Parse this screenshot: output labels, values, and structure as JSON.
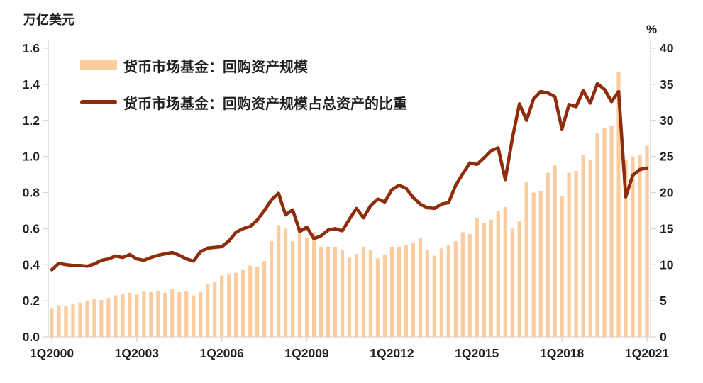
{
  "axes_titles": {
    "left": "万亿美元",
    "right": "%"
  },
  "legend": {
    "items": [
      {
        "label": "货币市场基金：回购资产规模",
        "marker": "bar"
      },
      {
        "label": "货币市场基金：回购资产规模占总资产的比重",
        "marker": "line"
      }
    ]
  },
  "colors": {
    "bar": "#FACC9E",
    "line": "#8E2C0B",
    "text": "#1F1F1F",
    "axis": "#D6D6D6",
    "background": "#FFFFFF"
  },
  "chart_data": {
    "type": "bar+line",
    "title": "",
    "left_axis": {
      "label": "万亿美元",
      "min": 0,
      "max": 1.6,
      "step": 0.2
    },
    "right_axis": {
      "label": "%",
      "min": 0,
      "max": 40,
      "step": 5
    },
    "x_tick_labels": [
      "1Q2000",
      "1Q2003",
      "1Q2006",
      "1Q2009",
      "1Q2012",
      "1Q2015",
      "1Q2018",
      "1Q2021"
    ],
    "x_tick_indices": [
      0,
      12,
      24,
      36,
      48,
      60,
      72,
      84
    ],
    "grid": false,
    "legend_position": "top-left",
    "categories": [
      "1Q2000",
      "2Q2000",
      "3Q2000",
      "4Q2000",
      "1Q2001",
      "2Q2001",
      "3Q2001",
      "4Q2001",
      "1Q2002",
      "2Q2002",
      "3Q2002",
      "4Q2002",
      "1Q2003",
      "2Q2003",
      "3Q2003",
      "4Q2003",
      "1Q2004",
      "2Q2004",
      "3Q2004",
      "4Q2004",
      "1Q2005",
      "2Q2005",
      "3Q2005",
      "4Q2005",
      "1Q2006",
      "2Q2006",
      "3Q2006",
      "4Q2006",
      "1Q2007",
      "2Q2007",
      "3Q2007",
      "4Q2007",
      "1Q2008",
      "2Q2008",
      "3Q2008",
      "4Q2008",
      "1Q2009",
      "2Q2009",
      "3Q2009",
      "4Q2009",
      "1Q2010",
      "2Q2010",
      "3Q2010",
      "4Q2010",
      "1Q2011",
      "2Q2011",
      "3Q2011",
      "4Q2011",
      "1Q2012",
      "2Q2012",
      "3Q2012",
      "4Q2012",
      "1Q2013",
      "2Q2013",
      "3Q2013",
      "4Q2013",
      "1Q2014",
      "2Q2014",
      "3Q2014",
      "4Q2014",
      "1Q2015",
      "2Q2015",
      "3Q2015",
      "4Q2015",
      "1Q2016",
      "2Q2016",
      "3Q2016",
      "4Q2016",
      "1Q2017",
      "2Q2017",
      "3Q2017",
      "4Q2017",
      "1Q2018",
      "2Q2018",
      "3Q2018",
      "4Q2018",
      "1Q2019",
      "2Q2019",
      "3Q2019",
      "4Q2019",
      "1Q2020",
      "2Q2020",
      "3Q2020",
      "4Q2020",
      "1Q2021"
    ],
    "series": [
      {
        "name": "货币市场基金：回购资产规模",
        "type": "bar",
        "axis": "left",
        "unit": "万亿美元",
        "values": [
          0.16,
          0.175,
          0.17,
          0.18,
          0.19,
          0.2,
          0.21,
          0.205,
          0.215,
          0.23,
          0.235,
          0.245,
          0.235,
          0.255,
          0.25,
          0.255,
          0.245,
          0.265,
          0.25,
          0.255,
          0.23,
          0.25,
          0.295,
          0.305,
          0.34,
          0.345,
          0.355,
          0.37,
          0.395,
          0.39,
          0.42,
          0.53,
          0.62,
          0.6,
          0.53,
          0.61,
          0.55,
          0.58,
          0.5,
          0.5,
          0.5,
          0.48,
          0.44,
          0.46,
          0.5,
          0.48,
          0.435,
          0.455,
          0.5,
          0.5,
          0.51,
          0.52,
          0.55,
          0.48,
          0.45,
          0.49,
          0.51,
          0.53,
          0.58,
          0.57,
          0.66,
          0.63,
          0.65,
          0.7,
          0.72,
          0.6,
          0.64,
          0.86,
          0.8,
          0.81,
          0.91,
          0.95,
          0.78,
          0.91,
          0.92,
          1.01,
          0.98,
          1.13,
          1.16,
          1.17,
          1.47,
          0.98,
          1.0,
          1.01,
          1.06
        ]
      },
      {
        "name": "货币市场基金：回购资产规模占总资产的比重",
        "type": "line",
        "axis": "right",
        "unit": "%",
        "values": [
          9.3,
          10.2,
          10.0,
          9.9,
          9.9,
          9.8,
          10.1,
          10.6,
          10.8,
          11.2,
          11.0,
          11.4,
          10.8,
          10.6,
          11.0,
          11.3,
          11.5,
          11.7,
          11.3,
          10.8,
          10.5,
          11.8,
          12.3,
          12.4,
          12.5,
          13.3,
          14.5,
          15.0,
          15.3,
          16.2,
          17.5,
          19.0,
          19.9,
          16.9,
          17.6,
          14.6,
          15.2,
          13.6,
          14.0,
          14.8,
          15.0,
          14.7,
          16.3,
          17.8,
          16.5,
          18.2,
          19.1,
          18.7,
          20.4,
          21.0,
          20.6,
          19.3,
          18.4,
          17.9,
          17.8,
          18.4,
          18.6,
          21.0,
          22.6,
          24.1,
          23.9,
          24.8,
          25.8,
          26.2,
          21.8,
          27.5,
          32.3,
          30.0,
          33.0,
          34.0,
          33.8,
          33.3,
          28.8,
          32.2,
          31.9,
          34.1,
          32.4,
          35.1,
          34.3,
          32.6,
          34.0,
          19.4,
          22.4,
          23.2,
          23.4
        ]
      }
    ]
  }
}
